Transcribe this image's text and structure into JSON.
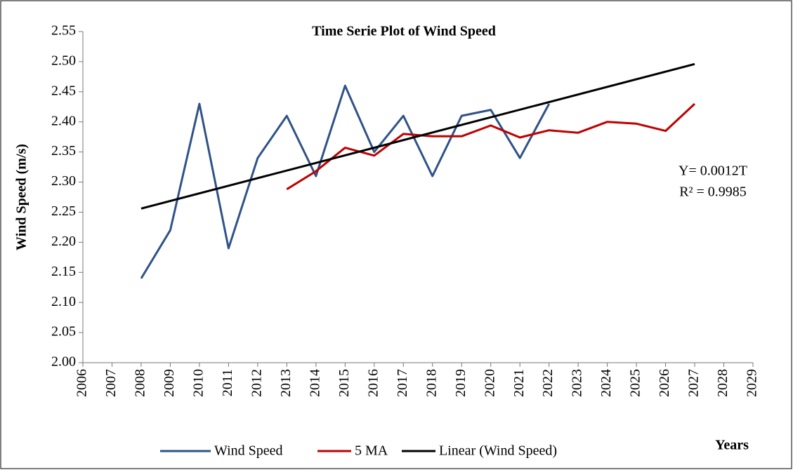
{
  "chart_data": {
    "type": "line",
    "title": "Time Serie Plot of  Wind Speed",
    "y_label": "Wind Speed (m/s)",
    "x_label": "Years",
    "annotations": [
      "Y= 0.0012T",
      "R² = 0.9985"
    ],
    "xlim": [
      2006,
      2029
    ],
    "xticks": [
      2006,
      2007,
      2008,
      2009,
      2010,
      2011,
      2012,
      2013,
      2014,
      2015,
      2016,
      2017,
      2018,
      2019,
      2020,
      2021,
      2022,
      2023,
      2024,
      2025,
      2026,
      2027,
      2028,
      2029
    ],
    "ylim": [
      2.0,
      2.55
    ],
    "yticks": [
      {
        "value": 2.0,
        "label": "2.00"
      },
      {
        "value": 2.05,
        "label": "2.05"
      },
      {
        "value": 2.1,
        "label": "2.10"
      },
      {
        "value": 2.15,
        "label": "2.15"
      },
      {
        "value": 2.2,
        "label": "2.20"
      },
      {
        "value": 2.25,
        "label": "2.25"
      },
      {
        "value": 2.3,
        "label": "2.30"
      },
      {
        "value": 2.35,
        "label": "2.35"
      },
      {
        "value": 2.4,
        "label": "2.40"
      },
      {
        "value": 2.45,
        "label": "2.45"
      },
      {
        "value": 2.5,
        "label": "2.50"
      },
      {
        "value": 2.55,
        "label": "2.55"
      }
    ],
    "grid": false,
    "legend": "bottom",
    "series": [
      {
        "name": "Wind Speed",
        "color": "#2f5288",
        "x": [
          2008,
          2009,
          2010,
          2011,
          2012,
          2013,
          2014,
          2015,
          2016,
          2017,
          2018,
          2019,
          2020,
          2021,
          2022
        ],
        "values": [
          2.14,
          2.22,
          2.43,
          2.19,
          2.34,
          2.41,
          2.31,
          2.46,
          2.35,
          2.41,
          2.31,
          2.41,
          2.42,
          2.34,
          2.43
        ]
      },
      {
        "name": "5 MA",
        "color": "#c00000",
        "x": [
          2013,
          2014,
          2015,
          2016,
          2017,
          2018,
          2019,
          2020,
          2021,
          2022,
          2023,
          2024,
          2025,
          2026,
          2027
        ],
        "values": [
          2.288,
          2.318,
          2.357,
          2.344,
          2.38,
          2.376,
          2.376,
          2.394,
          2.374,
          2.386,
          2.382,
          2.4,
          2.397,
          2.385,
          2.43
        ]
      },
      {
        "name": "Linear (Wind Speed)",
        "color": "#000000",
        "x": [
          2008,
          2027
        ],
        "values": [
          2.256,
          2.496
        ]
      }
    ]
  }
}
